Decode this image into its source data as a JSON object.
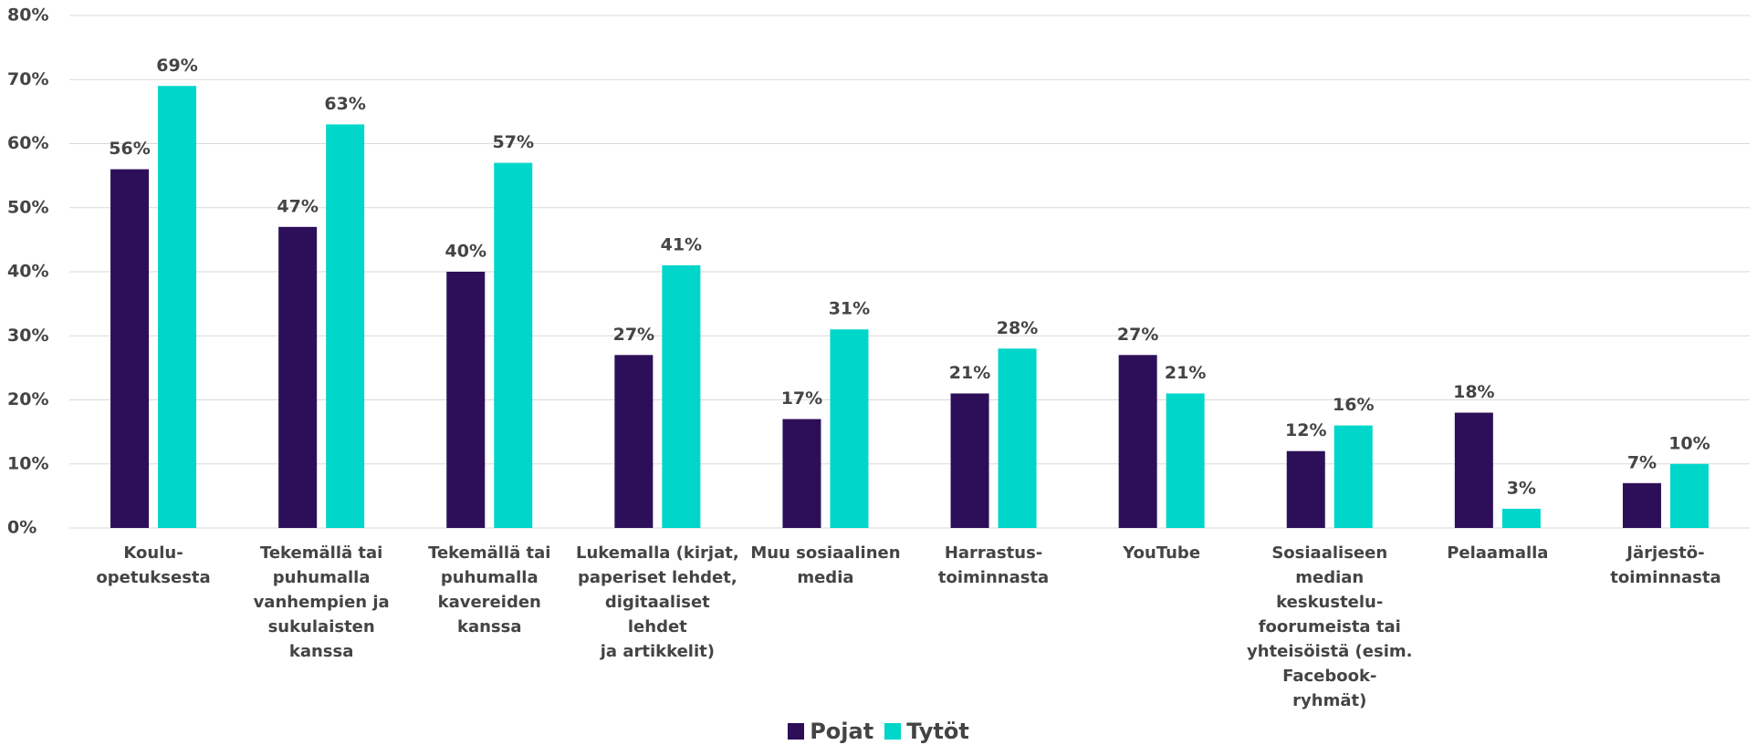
{
  "chart_data": {
    "type": "bar",
    "categories": [
      "Koulu-\nopetuksesta",
      "Tekemällä tai\npuhumalla\nvanhempien ja\nsukulaisten kanssa",
      "Tekemällä tai\npuhumalla\nkavereiden kanssa",
      "Lukemalla (kirjat,\npaperiset lehdet,\ndigitaaliset lehdet\nja artikkelit)",
      "Muu sosiaalinen\nmedia",
      "Harrastus-\ntoiminnasta",
      "YouTube",
      "Sosiaaliseen\nmedian\nkeskustelu-\nfoorumeista tai\nyhteisöistä (esim.\nFacebook-ryhmät)",
      "Pelaamalla",
      "Järjestö-\ntoiminnasta"
    ],
    "series": [
      {
        "name": "Pojat",
        "color": "#2d0f59",
        "values": [
          56,
          47,
          40,
          27,
          17,
          21,
          27,
          12,
          18,
          7
        ],
        "value_labels": [
          "56%",
          "47%",
          "40%",
          "27%",
          "17%",
          "21%",
          "27%",
          "12%",
          "18%",
          "7%"
        ]
      },
      {
        "name": "Tytöt",
        "color": "#00d6c9",
        "values": [
          69,
          63,
          57,
          41,
          31,
          28,
          21,
          16,
          3,
          10
        ],
        "value_labels": [
          "69%",
          "63%",
          "57%",
          "41%",
          "31%",
          "28%",
          "21%",
          "16%",
          "3%",
          "10%"
        ]
      }
    ],
    "ylim": [
      0,
      80
    ],
    "yticks": [
      {
        "value": 0,
        "label": "0%"
      },
      {
        "value": 10,
        "label": "10%"
      },
      {
        "value": 20,
        "label": "20%"
      },
      {
        "value": 30,
        "label": "30%"
      },
      {
        "value": 40,
        "label": "40%"
      },
      {
        "value": 50,
        "label": "50%"
      },
      {
        "value": 60,
        "label": "60%"
      },
      {
        "value": 70,
        "label": "70%"
      },
      {
        "value": 80,
        "label": "80%"
      }
    ],
    "grid": true,
    "legend": "bottom"
  }
}
